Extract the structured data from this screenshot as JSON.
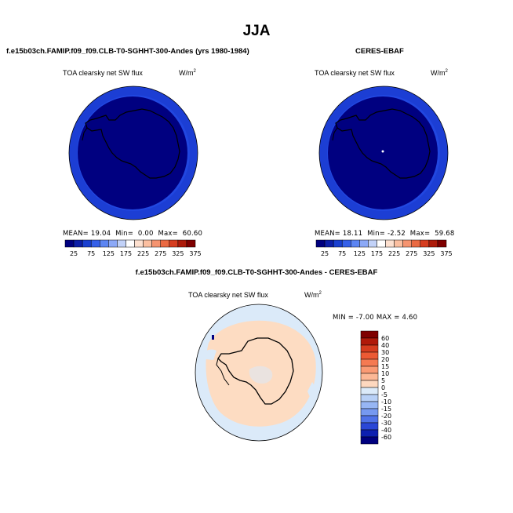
{
  "main_title": "JJA",
  "colors": {
    "map_background": "#000080",
    "outer_ring": "#1c3ed4",
    "inner_band": "#2147e0",
    "diff_tan": "#fddcc2",
    "diff_light_blue": "#dbeaf9",
    "coastline": "#000000"
  },
  "panels": [
    {
      "title": "f.e15b03ch.FAMIP.f09_f09.CLB-T0-SGHHT-300-Andes (yrs 1980-1984)",
      "variable": "TOA clearsky net SW flux",
      "units": "W/m",
      "units_sup": "2",
      "stats": {
        "mean_label": "MEAN=",
        "mean": "19.04",
        "min_label": "Min=",
        "min": "0.00",
        "max_label": "Max=",
        "max": "60.60"
      }
    },
    {
      "title": "CERES-EBAF",
      "variable": "TOA clearsky net SW flux",
      "units": "W/m",
      "units_sup": "2",
      "stats": {
        "mean_label": "MEAN=",
        "mean": "18.11",
        "min_label": "Min=",
        "min": "-2.52",
        "max_label": "Max=",
        "max": "59.68"
      }
    }
  ],
  "abs_colorbar": {
    "labels": [
      "25",
      "75",
      "125",
      "175",
      "225",
      "275",
      "325",
      "375"
    ],
    "colors": [
      "#00007f",
      "#0d1fa8",
      "#1a40d0",
      "#3560e8",
      "#5c85f2",
      "#8ca9f7",
      "#c2d2f8",
      "#ffffff",
      "#fde0cf",
      "#fbbfa0",
      "#f59470",
      "#ea6a43",
      "#d63d1f",
      "#ad1b0a",
      "#7f0000"
    ]
  },
  "diff": {
    "title": "f.e15b03ch.FAMIP.f09_f09.CLB-T0-SGHHT-300-Andes - CERES-EBAF",
    "variable": "TOA clearsky net SW flux",
    "units": "W/m",
    "units_sup": "2",
    "min_max_text": "MIN = -7.00 MAX =  4.60",
    "colorbar_labels": [
      "60",
      "40",
      "30",
      "20",
      "15",
      "10",
      "5",
      "0",
      "-5",
      "-10",
      "-15",
      "-20",
      "-30",
      "-40",
      "-60"
    ],
    "colorbar_colors": [
      "#7f0000",
      "#b01a0a",
      "#d63d1f",
      "#ec5a34",
      "#f57a52",
      "#fa9a74",
      "#fcb896",
      "#fdd8bf",
      "#dbeaf9",
      "#b8d0f6",
      "#97b6f4",
      "#7699f0",
      "#4f72e8",
      "#2a47d6",
      "#0d20b0",
      "#00007f"
    ]
  },
  "chart_data": [
    {
      "type": "heatmap",
      "title": "f.e15b03ch.FAMIP.f09_f09.CLB-T0-SGHHT-300-Andes (yrs 1980-1984)",
      "subtitle": "TOA clearsky net SW flux",
      "units": "W/m2",
      "projection": "south polar stereographic",
      "stats": {
        "mean": 19.04,
        "min": 0.0,
        "max": 60.6
      },
      "colorbar_levels": [
        25,
        75,
        125,
        175,
        225,
        275,
        325,
        375
      ]
    },
    {
      "type": "heatmap",
      "title": "CERES-EBAF",
      "subtitle": "TOA clearsky net SW flux",
      "units": "W/m2",
      "projection": "south polar stereographic",
      "stats": {
        "mean": 18.11,
        "min": -2.52,
        "max": 59.68
      },
      "colorbar_levels": [
        25,
        75,
        125,
        175,
        225,
        275,
        325,
        375
      ]
    },
    {
      "type": "heatmap",
      "title": "f.e15b03ch.FAMIP.f09_f09.CLB-T0-SGHHT-300-Andes - CERES-EBAF",
      "subtitle": "TOA clearsky net SW flux",
      "units": "W/m2",
      "projection": "south polar stereographic",
      "stats": {
        "min": -7.0,
        "max": 4.6
      },
      "colorbar_levels": [
        60,
        40,
        30,
        20,
        15,
        10,
        5,
        0,
        -5,
        -10,
        -15,
        -20,
        -30,
        -40,
        -60
      ]
    }
  ]
}
